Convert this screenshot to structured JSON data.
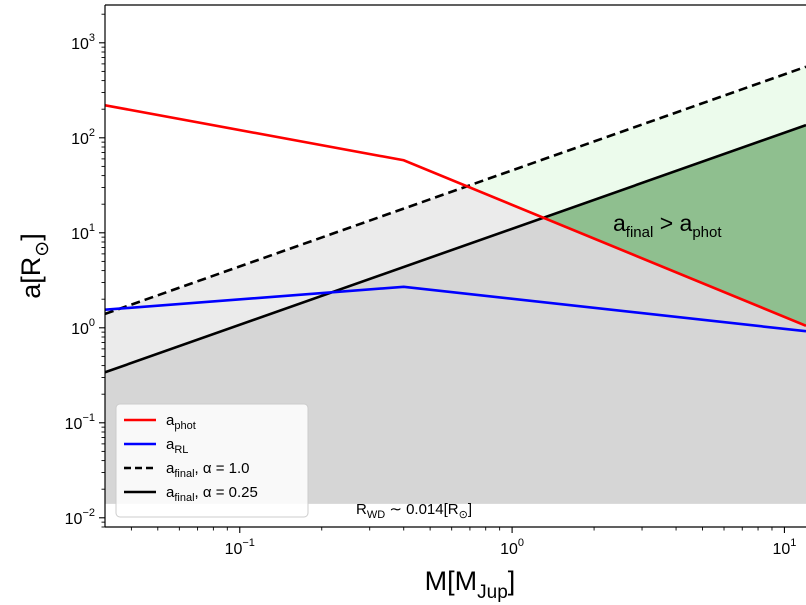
{
  "chart_data": {
    "type": "line",
    "title": "",
    "xscale": "log",
    "yscale": "log",
    "xlim": [
      0.032,
      12
    ],
    "ylim": [
      0.008,
      2500
    ],
    "xlabel": {
      "base": "M[M",
      "sub": "Jup",
      "tail": "]"
    },
    "ylabel": {
      "base": "a[R",
      "sub": "⊙",
      "tail": "]"
    },
    "xticks": [
      {
        "value": 0.1,
        "base": "10",
        "exp": "−1"
      },
      {
        "value": 1,
        "base": "10",
        "exp": "0"
      },
      {
        "value": 10,
        "base": "10",
        "exp": "1"
      }
    ],
    "yticks": [
      {
        "value": 0.01,
        "base": "10",
        "exp": "−2"
      },
      {
        "value": 0.1,
        "base": "10",
        "exp": "−1"
      },
      {
        "value": 1,
        "base": "10",
        "exp": "0"
      },
      {
        "value": 10,
        "base": "10",
        "exp": "1"
      },
      {
        "value": 100,
        "base": "10",
        "exp": "2"
      },
      {
        "value": 1000,
        "base": "10",
        "exp": "3"
      }
    ],
    "series": [
      {
        "id": "a_phot",
        "name": {
          "base": "a",
          "sub": "phot",
          "tail": ""
        },
        "color": "#ff0000",
        "dash": "solid",
        "x": [
          0.032,
          0.4,
          12
        ],
        "y": [
          220,
          58,
          1.05
        ]
      },
      {
        "id": "a_rl",
        "name": {
          "base": "a",
          "sub": "RL",
          "tail": ""
        },
        "color": "#0000ff",
        "dash": "solid",
        "x": [
          0.032,
          0.4,
          12
        ],
        "y": [
          1.55,
          2.7,
          0.92
        ]
      },
      {
        "id": "a_final_1",
        "name": {
          "base": "a",
          "sub": "final",
          "tail": ", α = 1.0"
        },
        "color": "#000000",
        "dash": "dashed",
        "x": [
          0.032,
          12
        ],
        "y": [
          1.4,
          560
        ]
      },
      {
        "id": "a_final_025",
        "name": {
          "base": "a",
          "sub": "final",
          "tail": ", α = 0.25"
        },
        "color": "#000000",
        "dash": "solid",
        "x": [
          0.032,
          12
        ],
        "y": [
          0.34,
          136
        ]
      }
    ],
    "shaded_regions": [
      {
        "id": "light-gray-region",
        "color": "#ebebeb",
        "description": "between a_final α=0.25 and α=1.0"
      },
      {
        "id": "dark-gray-region",
        "color": "#d6d6d6",
        "description": "below a_final α=0.25, above R_WD"
      },
      {
        "id": "light-green-region",
        "color": "#ecfbec",
        "description": "between a_final α=0.25 and α=1.0, above a_phot"
      },
      {
        "id": "green-region",
        "color": "#8fbf8f",
        "description": "a_final > a_phot"
      }
    ],
    "r_wd": 0.014,
    "annotations": {
      "green_region": {
        "base": "a",
        "sub1": "final",
        "mid": " > a",
        "sub2": "phot"
      },
      "r_wd": {
        "base": "R",
        "sub": "WD",
        "tail": " ∼ 0.014[R",
        "sub2": "⊙",
        "tail2": "]"
      }
    },
    "legend": {
      "location": "lower-left"
    }
  }
}
